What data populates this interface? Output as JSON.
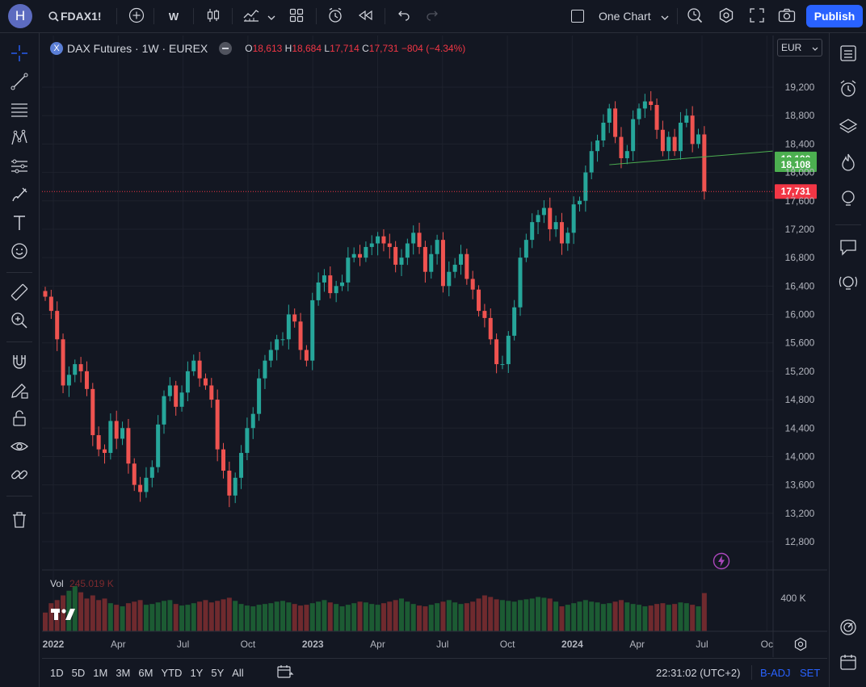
{
  "topbar": {
    "avatar_letter": "H",
    "symbol": "FDAX1!",
    "interval": "W",
    "layout_label": "One Chart",
    "publish_label": "Publish"
  },
  "legend": {
    "title": "DAX Futures · 1W · EUREX",
    "o_label": "O",
    "o": "18,613",
    "h_label": "H",
    "h": "18,684",
    "l_label": "L",
    "l": "17,714",
    "c_label": "C",
    "c": "17,731",
    "change": "−804 (−4.34%)"
  },
  "currency": "EUR",
  "volume_label": "Vol",
  "volume_value": "245.019 K",
  "bottombar": {
    "ranges": [
      "1D",
      "5D",
      "1M",
      "3M",
      "6M",
      "YTD",
      "1Y",
      "5Y",
      "All"
    ],
    "time": "22:31:02 (UTC+2)",
    "badj": "B-ADJ",
    "set": "SET"
  },
  "colors": {
    "up": "#26a69a",
    "down": "#ef5350",
    "accent": "#2962ff",
    "bg": "#131722"
  },
  "chart_data": {
    "type": "candlestick",
    "title": "DAX Futures · 1W · EUREX",
    "y_ticks": [
      12800,
      13200,
      13600,
      14000,
      14400,
      14800,
      15200,
      15600,
      16000,
      16400,
      16800,
      17200,
      17600,
      18000,
      18400,
      18800,
      19200
    ],
    "x_ticks": [
      "2022",
      "Apr",
      "Jul",
      "Oct",
      "2023",
      "Apr",
      "Jul",
      "Oct",
      "2024",
      "Apr",
      "Jul",
      "Oc"
    ],
    "volume_tick": "400 K",
    "ylim": [
      12500,
      19500
    ],
    "price_labels": [
      {
        "value": 18190,
        "text": "18,190",
        "color": "#4caf50"
      },
      {
        "value": 18108,
        "text": "18,108",
        "color": "#4caf50"
      },
      {
        "value": 17731,
        "text": "17,731",
        "color": "#f23645"
      }
    ],
    "trendline": {
      "x0": 95,
      "y0": 18108,
      "x1": 122,
      "y1": 18300
    },
    "weekly_close": [
      16250,
      16050,
      15650,
      15000,
      15150,
      15300,
      15200,
      14950,
      14300,
      14100,
      14050,
      14500,
      14250,
      14400,
      13900,
      13600,
      13500,
      13700,
      13850,
      14450,
      14850,
      15000,
      14700,
      14900,
      15200,
      15350,
      15100,
      15000,
      14800,
      14100,
      13800,
      13450,
      13700,
      14050,
      14400,
      14600,
      15100,
      15350,
      15500,
      15650,
      15650,
      16000,
      15900,
      15500,
      15350,
      16200,
      16450,
      16550,
      16300,
      16400,
      16450,
      16800,
      16850,
      16800,
      16950,
      17000,
      17100,
      17000,
      16950,
      16700,
      16800,
      17000,
      17150,
      16950,
      16600,
      16850,
      17050,
      16400,
      16600,
      16700,
      16850,
      16500,
      16350,
      16050,
      15950,
      15650,
      15300,
      15300,
      15700,
      16100,
      16800,
      17050,
      17300,
      17400,
      17500,
      17200,
      17300,
      17000,
      17150,
      17550,
      17600,
      18000,
      18300,
      18450,
      18700,
      18900,
      18500,
      18200,
      18300,
      18750,
      18900,
      19000,
      18950,
      18600,
      18300,
      18500,
      18300,
      18700,
      18800,
      18400,
      18535,
      17731
    ],
    "weekly_volume": [
      120,
      180,
      200,
      230,
      260,
      290,
      250,
      210,
      230,
      200,
      210,
      180,
      170,
      160,
      180,
      190,
      200,
      170,
      175,
      185,
      195,
      200,
      175,
      165,
      170,
      180,
      190,
      200,
      185,
      195,
      205,
      215,
      195,
      175,
      165,
      160,
      170,
      175,
      180,
      190,
      195,
      185,
      175,
      165,
      170,
      180,
      190,
      200,
      185,
      175,
      160,
      170,
      180,
      190,
      185,
      175,
      170,
      180,
      190,
      200,
      210,
      190,
      175,
      165,
      160,
      170,
      180,
      190,
      200,
      185,
      175,
      180,
      190,
      210,
      230,
      220,
      205,
      200,
      195,
      190,
      200,
      205,
      210,
      220,
      215,
      210,
      190,
      160,
      170,
      180,
      190,
      200,
      190,
      185,
      175,
      180,
      190,
      200,
      185,
      175,
      170,
      160,
      165,
      175,
      180,
      170,
      175,
      185,
      180,
      170,
      160,
      245
    ]
  }
}
